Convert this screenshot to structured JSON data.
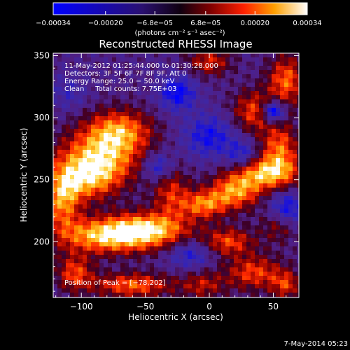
{
  "chart_data": {
    "type": "heatmap",
    "title": "Reconstructed RHESSI Image",
    "xlabel": "Heliocentric X (arcsec)",
    "ylabel": "Heliocentric Y (arcsec)",
    "xlim": [
      -122,
      70
    ],
    "ylim": [
      155,
      352
    ],
    "x_ticks": [
      -100,
      -50,
      0,
      50
    ],
    "y_ticks": [
      200,
      250,
      300,
      350
    ],
    "colorbar": {
      "ticks": [
        -0.00034,
        -0.0002,
        -6.8e-05,
        6.8e-05,
        0.0002,
        0.00034
      ],
      "tick_labels": [
        "−0.00034",
        "−0.00020",
        "−6.8e−05",
        "6.8e−05",
        "0.00020",
        "0.00034"
      ],
      "unit_label": "(photons cm⁻² s⁻¹ asec⁻²)",
      "min": -0.00034,
      "max": 0.00034
    },
    "annotations": [
      "11-May-2012 01:25:44.000 to 01:30:28.000",
      "Detectors: 3F 5F 6F 7F 8F 9F, Att 0",
      "Energy Range: 25.0 − 50.0 keV",
      "Clean     Total counts: 7.75E+03"
    ],
    "peak_label": "Position of Peak = [−78,202]",
    "peak": [
      -78,
      202
    ],
    "blobs": [
      {
        "x": -85,
        "y": 268,
        "sx": 22,
        "sy": 16,
        "a": 1.0
      },
      {
        "x": -70,
        "y": 290,
        "sx": 18,
        "sy": 12,
        "a": 0.8
      },
      {
        "x": -95,
        "y": 250,
        "sx": 16,
        "sy": 12,
        "a": 0.7
      },
      {
        "x": -80,
        "y": 205,
        "sx": 26,
        "sy": 10,
        "a": 1.1
      },
      {
        "x": -45,
        "y": 210,
        "sx": 22,
        "sy": 10,
        "a": 0.9
      },
      {
        "x": -115,
        "y": 235,
        "sx": 10,
        "sy": 18,
        "a": 0.9
      },
      {
        "x": -105,
        "y": 175,
        "sx": 10,
        "sy": 10,
        "a": 0.7
      },
      {
        "x": -60,
        "y": 165,
        "sx": 22,
        "sy": 7,
        "a": 0.8
      },
      {
        "x": -30,
        "y": 240,
        "sx": 10,
        "sy": 14,
        "a": 0.6
      },
      {
        "x": -5,
        "y": 230,
        "sx": 12,
        "sy": 8,
        "a": 0.8
      },
      {
        "x": 20,
        "y": 240,
        "sx": 14,
        "sy": 10,
        "a": 0.9
      },
      {
        "x": 45,
        "y": 255,
        "sx": 18,
        "sy": 9,
        "a": 1.0
      },
      {
        "x": 55,
        "y": 275,
        "sx": 10,
        "sy": 14,
        "a": 0.8
      },
      {
        "x": 35,
        "y": 305,
        "sx": 12,
        "sy": 12,
        "a": 0.7
      },
      {
        "x": 60,
        "y": 330,
        "sx": 10,
        "sy": 14,
        "a": 0.8
      },
      {
        "x": 0,
        "y": 345,
        "sx": 12,
        "sy": 8,
        "a": 0.6
      },
      {
        "x": 15,
        "y": 200,
        "sx": 14,
        "sy": 8,
        "a": 0.7
      },
      {
        "x": 55,
        "y": 215,
        "sx": 10,
        "sy": 10,
        "a": 0.6
      },
      {
        "x": 35,
        "y": 175,
        "sx": 16,
        "sy": 10,
        "a": 0.7
      },
      {
        "x": -5,
        "y": 165,
        "sx": 12,
        "sy": 8,
        "a": 0.5
      },
      {
        "x": 60,
        "y": 165,
        "sx": 8,
        "sy": 8,
        "a": 0.6
      },
      {
        "x": -25,
        "y": 320,
        "sx": 10,
        "sy": 10,
        "a": -0.7
      },
      {
        "x": -40,
        "y": 260,
        "sx": 8,
        "sy": 8,
        "a": -0.6
      },
      {
        "x": 0,
        "y": 285,
        "sx": 14,
        "sy": 12,
        "a": -0.6
      },
      {
        "x": 50,
        "y": 305,
        "sx": 6,
        "sy": 6,
        "a": -1.1
      },
      {
        "x": 60,
        "y": 225,
        "sx": 10,
        "sy": 10,
        "a": -0.8
      },
      {
        "x": -15,
        "y": 190,
        "sx": 12,
        "sy": 8,
        "a": -0.5
      },
      {
        "x": 25,
        "y": 270,
        "sx": 8,
        "sy": 8,
        "a": -0.5
      },
      {
        "x": -110,
        "y": 320,
        "sx": 10,
        "sy": 10,
        "a": -0.3
      }
    ]
  },
  "footer_timestamp": "7-May-2014 05:23"
}
